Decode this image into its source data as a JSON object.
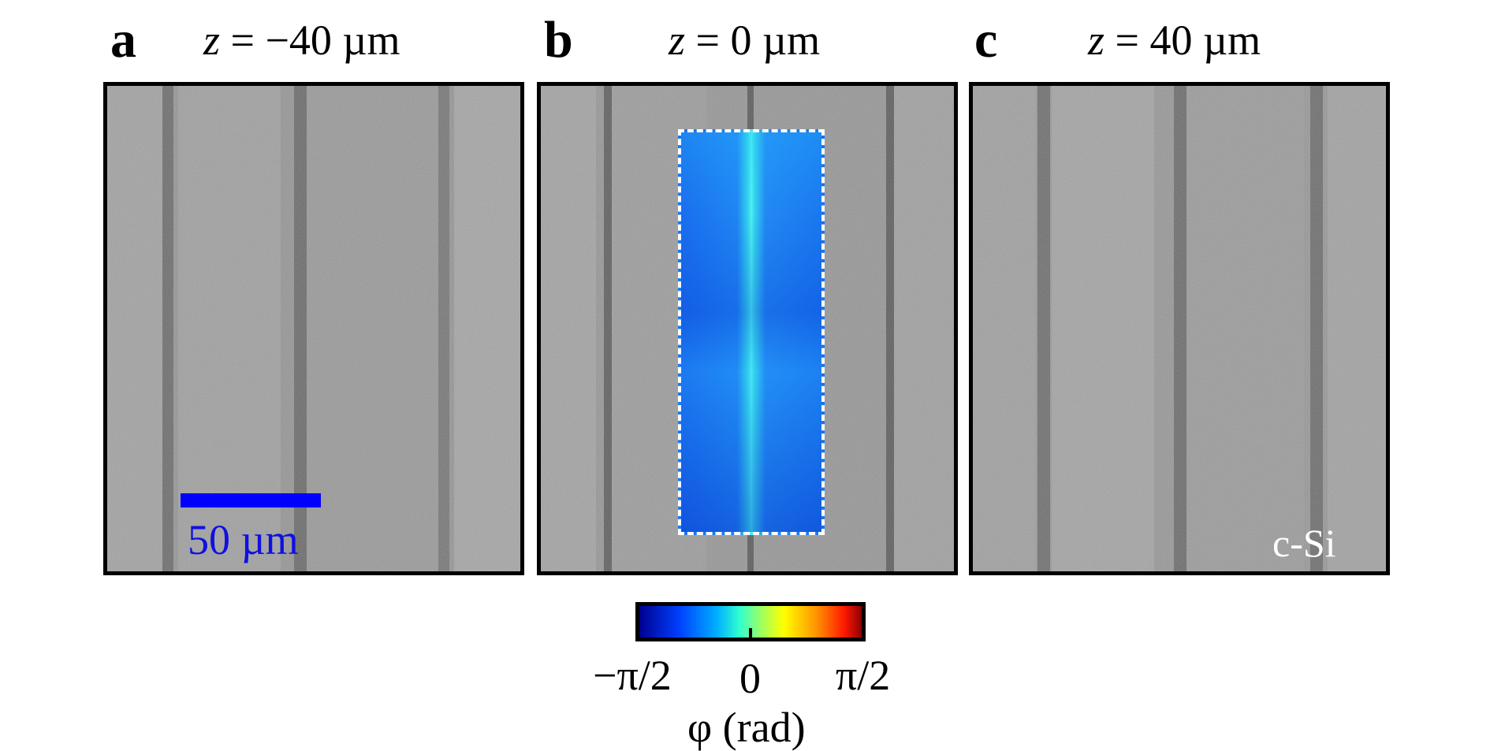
{
  "panels": [
    {
      "letter": "a",
      "z_var": "z",
      "z_value": " = −40 µm"
    },
    {
      "letter": "b",
      "z_var": "z",
      "z_value": " = 0 µm"
    },
    {
      "letter": "c",
      "z_var": "z",
      "z_value": " = 40 µm"
    }
  ],
  "scale_bar": {
    "label": "50 µm",
    "color": "#0000ff"
  },
  "material_label": "c-Si",
  "colorbar": {
    "min_label": "−π/2",
    "mid_label": "0",
    "max_label": "π/2",
    "title": "φ (rad)",
    "colormap": "jet"
  }
}
